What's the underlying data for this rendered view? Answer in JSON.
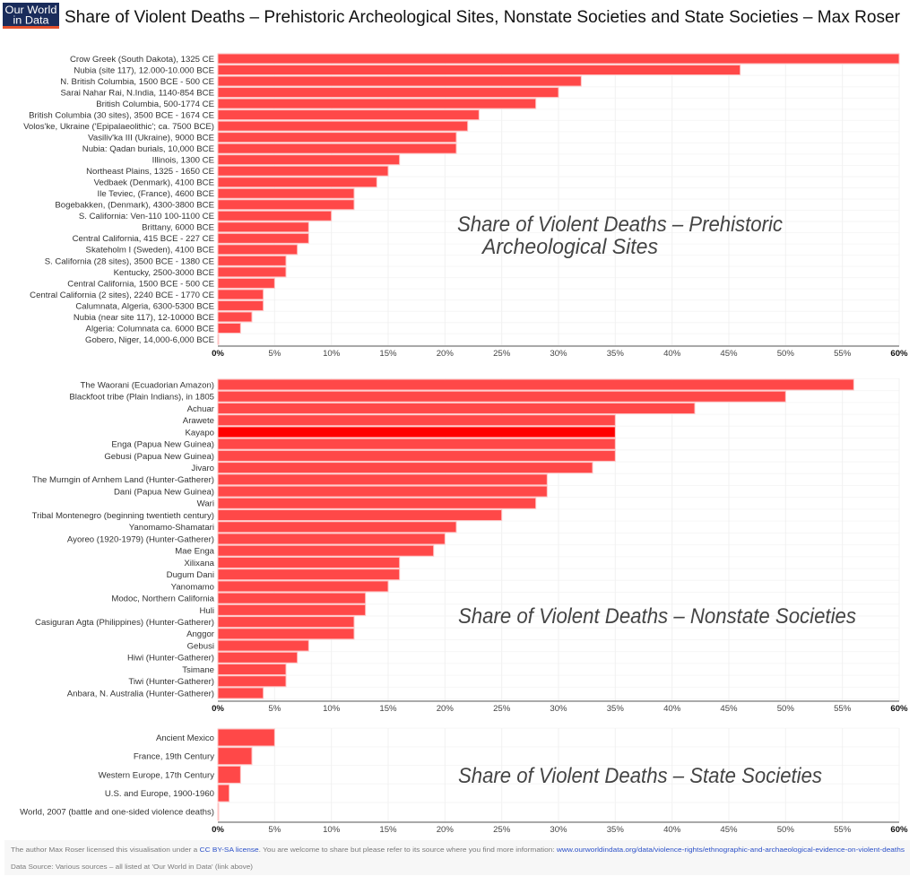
{
  "header": {
    "logo_line1": "Our World",
    "logo_line2": "in Data",
    "title": "Share of Violent Deaths – Prehistoric Archeological Sites, Nonstate Societies and State Societies – Max Roser"
  },
  "colors": {
    "bar": "#ff4848",
    "highlight": "#ff0000",
    "logo_bg": "#1a2c5b",
    "logo_underline": "#e4502c"
  },
  "chart_data": [
    {
      "type": "bar",
      "orientation": "horizontal",
      "title": "Share of Violent Deaths – Prehistoric Archeological Sites",
      "annotation_lines": [
        "Share of Violent Deaths – Prehistoric",
        "Archeological Sites"
      ],
      "xlabel": "",
      "ylabel": "",
      "xlim": [
        0,
        60
      ],
      "grid": true,
      "xticks": [
        0,
        5,
        10,
        15,
        20,
        25,
        30,
        35,
        40,
        45,
        50,
        55,
        60
      ],
      "xtick_labels": [
        "0%",
        "5%",
        "10%",
        "15%",
        "20%",
        "25%",
        "30%",
        "35%",
        "40%",
        "45%",
        "50%",
        "55%",
        "60%"
      ],
      "highlighted": null,
      "categories": [
        "Crow Greek (South Dakota), 1325 CE",
        "Nubia (site 117), 12.000-10.000 BCE",
        "N. British Columbia, 1500 BCE - 500 CE",
        "Sarai Nahar Rai, N.India, 1140-854 BCE",
        "British Columbia, 500-1774 CE",
        "British Columbia (30 sites), 3500 BCE - 1674 CE",
        "Volos'ke, Ukraine ('Epipalaeolithic'; ca. 7500 BCE)",
        "Vasiliv'ka III (Ukraine), 9000 BCE",
        "Nubia: Qadan burials, 10,000 BCE",
        "Illinois, 1300 CE",
        "Northeast Plains, 1325 - 1650 CE",
        "Vedbaek (Denmark), 4100 BCE",
        "Ile Teviec, (France), 4600 BCE",
        "Bogebakken, (Denmark), 4300-3800 BCE",
        "S. California: Ven-110 100-1100 CE",
        "Brittany, 6000 BCE",
        "Central California, 415 BCE - 227 CE",
        "Skateholm I (Sweden), 4100 BCE",
        "S. California (28 sites), 3500 BCE - 1380 CE",
        "Kentucky, 2500-3000 BCE",
        "Central California, 1500 BCE - 500 CE",
        "Central California (2 sites), 2240 BCE - 1770 CE",
        "Calumnata, Algeria, 6300-5300 BCE",
        "Nubia (near site 117), 12-10000 BCE",
        "Algeria: Columnata ca. 6000 BCE",
        "Gobero, Niger, 14,000-6,000 BCE"
      ],
      "values": [
        60,
        46,
        32,
        30,
        28,
        23,
        22,
        21,
        21,
        16,
        15,
        14,
        12,
        12,
        10,
        8,
        8,
        7,
        6,
        6,
        5,
        4,
        4,
        3,
        2,
        0
      ]
    },
    {
      "type": "bar",
      "orientation": "horizontal",
      "title": "Share of Violent Deaths – Nonstate Societies",
      "annotation_lines": [
        "Share of Violent Deaths – Nonstate Societies"
      ],
      "xlabel": "",
      "ylabel": "",
      "xlim": [
        0,
        60
      ],
      "grid": true,
      "xticks": [
        0,
        5,
        10,
        15,
        20,
        25,
        30,
        35,
        40,
        45,
        50,
        55,
        60
      ],
      "xtick_labels": [
        "0%",
        "5%",
        "10%",
        "15%",
        "20%",
        "25%",
        "30%",
        "35%",
        "40%",
        "45%",
        "50%",
        "55%",
        "60%"
      ],
      "highlighted": "Kayapo",
      "categories": [
        "The Waorani (Ecuadorian Amazon)",
        "Blackfoot tribe (Plain Indians), in 1805",
        "Achuar",
        "Arawete",
        "Kayapo",
        "Enga (Papua New Guinea)",
        "Gebusi (Papua New Guinea)",
        "Jivaro",
        "The Murngin of Arnhem Land (Hunter-Gatherer)",
        "Dani (Papua New Guinea)",
        "Wari",
        "Tribal Montenegro (beginning twentieth century)",
        "Yanomamo-Shamatari",
        "Ayoreo (1920-1979) (Hunter-Gatherer)",
        "Mae Enga",
        "Xilixana",
        "Dugum Dani",
        "Yanomamo",
        "Modoc, Northern California",
        "Huli",
        "Casiguran Agta (Philippines) (Hunter-Gatherer)",
        "Anggor",
        "Gebusi",
        "Hiwi (Hunter-Gatherer)",
        "Tsimane",
        "Tiwi (Hunter-Gatherer)",
        "Anbara, N. Australia (Hunter-Gatherer)"
      ],
      "values": [
        56,
        50,
        42,
        35,
        35,
        35,
        35,
        33,
        29,
        29,
        28,
        25,
        21,
        20,
        19,
        16,
        16,
        15,
        13,
        13,
        12,
        12,
        8,
        7,
        6,
        6,
        4
      ]
    },
    {
      "type": "bar",
      "orientation": "horizontal",
      "title": "Share of Violent Deaths – State Societies",
      "annotation_lines": [
        "Share of Violent Deaths – State Societies"
      ],
      "xlabel": "",
      "ylabel": "",
      "xlim": [
        0,
        60
      ],
      "grid": true,
      "xticks": [
        0,
        5,
        10,
        15,
        20,
        25,
        30,
        35,
        40,
        45,
        50,
        55,
        60
      ],
      "xtick_labels": [
        "0%",
        "5%",
        "10%",
        "15%",
        "20%",
        "25%",
        "30%",
        "35%",
        "40%",
        "45%",
        "50%",
        "55%",
        "60%"
      ],
      "highlighted": null,
      "categories": [
        "Ancient Mexico",
        "France, 19th Century",
        "Western Europe, 17th Century",
        "U.S. and Europe, 1900-1960",
        "World, 2007 (battle and one-sided violence deaths)"
      ],
      "values": [
        5,
        3,
        2,
        1,
        0
      ]
    }
  ],
  "footer": {
    "license_prefix": "The author Max Roser licensed this visualisation under a ",
    "license_link": "CC BY-SA license",
    "license_middle": ". You are welcome to share but please refer to its source where you find more information: ",
    "source_link": "www.ourworldindata.org/data/violence-rights/ethnographic-and-archaeological-evidence-on-violent-deaths",
    "data_source": "Data Source: Various sources – all listed at 'Our World in Data' (link above)"
  }
}
